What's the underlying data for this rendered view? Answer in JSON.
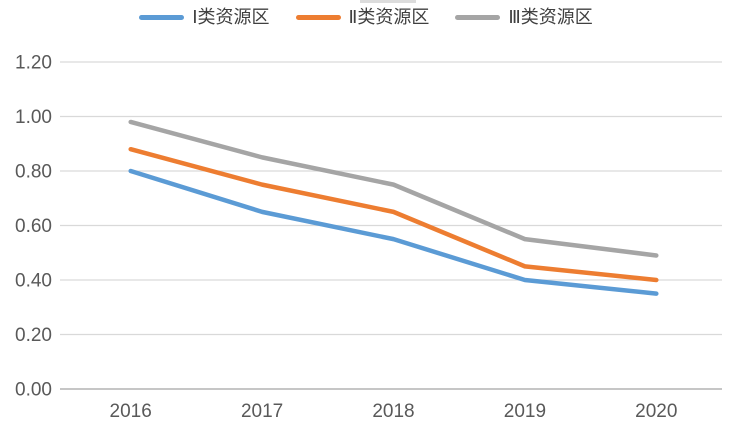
{
  "chart_data": {
    "type": "line",
    "title": "",
    "categories": [
      "2016",
      "2017",
      "2018",
      "2019",
      "2020"
    ],
    "series": [
      {
        "name": "Ⅰ类资源区",
        "color": "#5B9BD5",
        "values": [
          0.8,
          0.65,
          0.55,
          0.4,
          0.35
        ]
      },
      {
        "name": "Ⅱ类资源区",
        "color": "#ED7D31",
        "values": [
          0.88,
          0.75,
          0.65,
          0.45,
          0.4
        ]
      },
      {
        "name": "Ⅲ类资源区",
        "color": "#A5A5A5",
        "values": [
          0.98,
          0.85,
          0.75,
          0.55,
          0.49
        ]
      }
    ],
    "xlabel": "",
    "ylabel": "",
    "ylim": [
      0,
      1.2
    ],
    "yticks": [
      0,
      0.2,
      0.4,
      0.6,
      0.8,
      1.0,
      1.2
    ],
    "ytick_labels": [
      "0.00",
      "0.20",
      "0.40",
      "0.60",
      "0.80",
      "1.00",
      "1.20"
    ],
    "grid": "horizontal",
    "legend_position": "top-center",
    "colors": {
      "gridline": "#D9D9D9",
      "axis_line": "#C6C6C6",
      "tick_label": "#595959",
      "legend_text": "#404040",
      "background": "#FFFFFF"
    }
  }
}
